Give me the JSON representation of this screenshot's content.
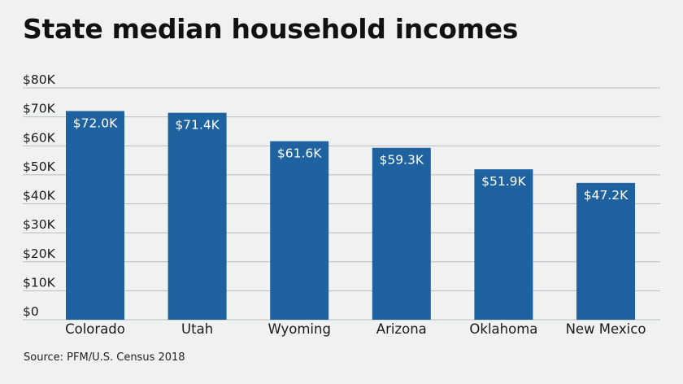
{
  "chart_data": {
    "type": "bar",
    "title": "State median household incomes",
    "categories": [
      "Colorado",
      "Utah",
      "Wyoming",
      "Arizona",
      "Oklahoma",
      "New Mexico"
    ],
    "values": [
      72.0,
      71.4,
      61.6,
      59.3,
      51.9,
      47.2
    ],
    "value_labels": [
      "$72.0K",
      "$71.4K",
      "$61.6K",
      "$59.3K",
      "$51.9K",
      "$47.2K"
    ],
    "y_ticks": [
      0,
      10,
      20,
      30,
      40,
      50,
      60,
      70,
      80
    ],
    "y_tick_labels": [
      "$0",
      "$10K",
      "$20K",
      "$30K",
      "$40K",
      "$50K",
      "$60K",
      "$70K",
      "$80K"
    ],
    "ylim": [
      0,
      80
    ],
    "xlabel": "",
    "ylabel": "",
    "grid": true,
    "legend": "none",
    "bar_color": "#1f62a0",
    "grid_color": "#b9bdbb",
    "source": "Source: PFM/U.S. Census 2018"
  }
}
